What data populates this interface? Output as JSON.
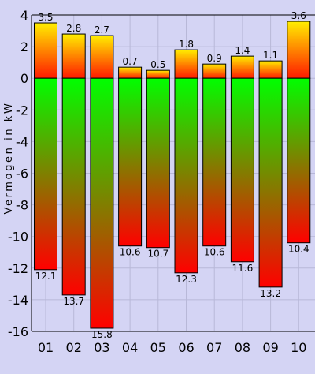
{
  "chart_data": {
    "type": "bar",
    "title": "",
    "xlabel": "",
    "ylabel": "Vermogen in kW",
    "ylim": [
      -16,
      4
    ],
    "yticks": [
      4,
      2,
      0,
      -2,
      -4,
      -6,
      -8,
      -10,
      -12,
      -14,
      -16
    ],
    "ytick_labels": [
      "4",
      "2",
      "0",
      "-2",
      "-4",
      "-6",
      "-8",
      "-10",
      "-12",
      "-14",
      "-16"
    ],
    "grid": true,
    "categories": [
      "01",
      "02",
      "03",
      "04",
      "05",
      "06",
      "07",
      "08",
      "09",
      "10"
    ],
    "series": [
      {
        "values": [
          3.5,
          2.8,
          2.7,
          0.7,
          0.5,
          1.8,
          0.9,
          1.4,
          1.1,
          3.6
        ],
        "labels": [
          "3.5",
          "2.8",
          "2.7",
          "0.7",
          "0.5",
          "1.8",
          "0.9",
          "1.4",
          "1.1",
          "3.6"
        ],
        "gradient": [
          "#ffee00",
          "#ff1a00"
        ]
      },
      {
        "values": [
          -12.1,
          -13.7,
          -15.8,
          -10.6,
          -10.7,
          -12.3,
          -10.6,
          -11.6,
          -13.2,
          -10.4
        ],
        "labels": [
          "12.1",
          "13.7",
          "15.8",
          "10.6",
          "10.7",
          "12.3",
          "10.6",
          "11.6",
          "13.2",
          "10.4"
        ],
        "gradient": [
          "#00ff00",
          "#ff0000"
        ]
      }
    ]
  },
  "colors": {
    "background": "#d4d4f4",
    "grid": "#b8b8d8",
    "bar_outline": "#000000"
  }
}
